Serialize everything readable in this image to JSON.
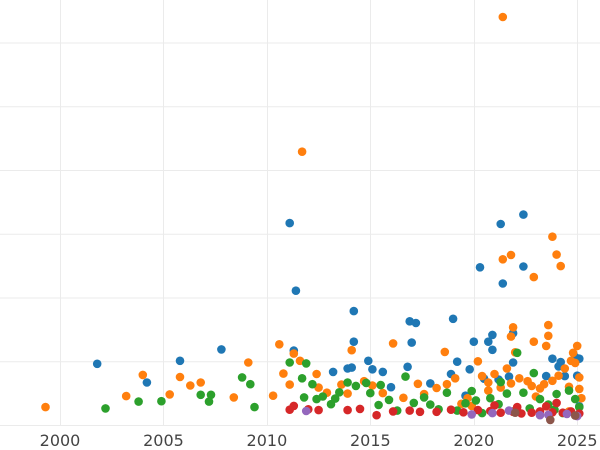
{
  "chart_data": {
    "type": "scatter",
    "title": "",
    "xlabel": "",
    "ylabel": "",
    "xlim": [
      1997.1,
      2026.1
    ],
    "ylim": [
      0,
      100
    ],
    "x_ticks": [
      2000,
      2005,
      2010,
      2015,
      2020,
      2025
    ],
    "x_tick_labels": [
      "2000",
      "2005",
      "2010",
      "2015",
      "2020",
      "2025"
    ],
    "y_gridlines": [
      0,
      15,
      30,
      45,
      60,
      75,
      90
    ],
    "grid": true,
    "legend": "none",
    "colors": {
      "blue": "#1f77b4",
      "orange": "#ff7f0e",
      "green": "#2ca02c",
      "red": "#d62728",
      "purple": "#9467bd",
      "brown": "#8c564b"
    },
    "series": [
      {
        "color_key": "blue",
        "points": [
          [
            2001.8,
            14.4
          ],
          [
            2004.2,
            10.0
          ],
          [
            2005.8,
            15.1
          ],
          [
            2007.8,
            17.8
          ],
          [
            2011.1,
            47.5
          ],
          [
            2011.4,
            31.6
          ],
          [
            2011.3,
            17.5
          ],
          [
            2013.2,
            12.5
          ],
          [
            2013.9,
            13.3
          ],
          [
            2014.2,
            26.8
          ],
          [
            2014.2,
            19.6
          ],
          [
            2014.1,
            13.5
          ],
          [
            2014.9,
            15.1
          ],
          [
            2015.1,
            13.1
          ],
          [
            2015.6,
            12.5
          ],
          [
            2016.0,
            8.9
          ],
          [
            2016.8,
            13.7
          ],
          [
            2016.9,
            24.4
          ],
          [
            2017.0,
            19.4
          ],
          [
            2017.2,
            24.0
          ],
          [
            2017.9,
            9.8
          ],
          [
            2018.9,
            12.0
          ],
          [
            2019.0,
            25.0
          ],
          [
            2019.2,
            14.9
          ],
          [
            2019.6,
            6.9
          ],
          [
            2019.8,
            13.1
          ],
          [
            2020.0,
            19.6
          ],
          [
            2020.3,
            37.1
          ],
          [
            2020.5,
            10.9
          ],
          [
            2020.7,
            19.6
          ],
          [
            2020.9,
            21.2
          ],
          [
            2020.9,
            17.7
          ],
          [
            2021.2,
            10.7
          ],
          [
            2021.3,
            47.3
          ],
          [
            2021.4,
            33.3
          ],
          [
            2021.9,
            21.6
          ],
          [
            2021.9,
            14.7
          ],
          [
            2021.7,
            11.4
          ],
          [
            2022.4,
            49.5
          ],
          [
            2022.4,
            37.3
          ],
          [
            2024.1,
            13.8
          ],
          [
            2024.2,
            14.8
          ],
          [
            2024.4,
            11.5
          ],
          [
            2024.9,
            16.0
          ],
          [
            2025.1,
            15.6
          ],
          [
            2025.0,
            11.6
          ],
          [
            2023.8,
            15.6
          ],
          [
            2023.5,
            11.5
          ],
          [
            2025.1,
            4.4
          ]
        ]
      },
      {
        "color_key": "orange",
        "points": [
          [
            1999.3,
            4.2
          ],
          [
            2003.2,
            6.8
          ],
          [
            2004.0,
            11.8
          ],
          [
            2005.3,
            7.2
          ],
          [
            2005.8,
            11.3
          ],
          [
            2006.3,
            9.3
          ],
          [
            2006.8,
            10.0
          ],
          [
            2008.4,
            6.5
          ],
          [
            2009.1,
            14.7
          ],
          [
            2010.3,
            6.9
          ],
          [
            2010.6,
            19.0
          ],
          [
            2010.8,
            12.1
          ],
          [
            2011.1,
            9.5
          ],
          [
            2011.3,
            16.8
          ],
          [
            2011.6,
            15.1
          ],
          [
            2011.7,
            64.3
          ],
          [
            2012.4,
            12.0
          ],
          [
            2012.5,
            8.8
          ],
          [
            2012.9,
            7.6
          ],
          [
            2013.6,
            9.5
          ],
          [
            2013.9,
            7.4
          ],
          [
            2014.1,
            17.6
          ],
          [
            2014.7,
            10.3
          ],
          [
            2015.1,
            9.3
          ],
          [
            2015.6,
            7.5
          ],
          [
            2016.1,
            19.2
          ],
          [
            2016.6,
            6.4
          ],
          [
            2017.3,
            9.7
          ],
          [
            2017.6,
            7.3
          ],
          [
            2018.2,
            8.7
          ],
          [
            2018.7,
            9.6
          ],
          [
            2018.6,
            17.2
          ],
          [
            2019.1,
            11.0
          ],
          [
            2019.7,
            6.3
          ],
          [
            2019.9,
            4.5
          ],
          [
            2020.2,
            15.0
          ],
          [
            2020.4,
            11.5
          ],
          [
            2020.7,
            10.0
          ],
          [
            2021.0,
            12.0
          ],
          [
            2021.3,
            8.8
          ],
          [
            2021.4,
            96.0
          ],
          [
            2021.4,
            39.0
          ],
          [
            2021.6,
            13.3
          ],
          [
            2021.8,
            9.8
          ],
          [
            2021.9,
            23.0
          ],
          [
            2021.8,
            20.8
          ],
          [
            2021.8,
            40.0
          ],
          [
            2022.0,
            17.1
          ],
          [
            2022.2,
            11.0
          ],
          [
            2022.6,
            10.3
          ],
          [
            2022.8,
            9.2
          ],
          [
            2022.9,
            19.6
          ],
          [
            2022.9,
            34.8
          ],
          [
            2023.2,
            8.6
          ],
          [
            2023.5,
            18.6
          ],
          [
            2023.6,
            21.0
          ],
          [
            2023.6,
            23.5
          ],
          [
            2023.8,
            10.4
          ],
          [
            2023.8,
            44.3
          ],
          [
            2024.0,
            40.1
          ],
          [
            2024.2,
            37.4
          ],
          [
            2024.1,
            11.6
          ],
          [
            2024.4,
            13.3
          ],
          [
            2024.6,
            9.0
          ],
          [
            2024.7,
            15.1
          ],
          [
            2024.8,
            17.0
          ],
          [
            2024.9,
            14.6
          ],
          [
            2025.1,
            8.5
          ],
          [
            2025.1,
            11.2
          ],
          [
            2025.2,
            6.3
          ],
          [
            2025.0,
            18.6
          ],
          [
            2023.4,
            9.6
          ],
          [
            2023.0,
            6.7
          ],
          [
            2020.7,
            8.1
          ],
          [
            2019.4,
            5.0
          ],
          [
            2024.6,
            3.2
          ]
        ]
      },
      {
        "color_key": "green",
        "points": [
          [
            2002.2,
            3.9
          ],
          [
            2003.8,
            5.5
          ],
          [
            2004.9,
            5.6
          ],
          [
            2006.8,
            7.1
          ],
          [
            2007.2,
            5.5
          ],
          [
            2007.3,
            7.1
          ],
          [
            2008.8,
            11.2
          ],
          [
            2009.2,
            9.6
          ],
          [
            2009.4,
            4.2
          ],
          [
            2011.1,
            14.7
          ],
          [
            2011.7,
            11.0
          ],
          [
            2011.9,
            14.5
          ],
          [
            2011.8,
            6.5
          ],
          [
            2012.2,
            9.6
          ],
          [
            2012.4,
            6.1
          ],
          [
            2012.7,
            6.7
          ],
          [
            2013.1,
            4.9
          ],
          [
            2013.3,
            6.2
          ],
          [
            2013.5,
            7.7
          ],
          [
            2013.9,
            10.0
          ],
          [
            2014.3,
            9.2
          ],
          [
            2014.8,
            9.9
          ],
          [
            2015.0,
            7.5
          ],
          [
            2015.4,
            4.7
          ],
          [
            2015.5,
            9.4
          ],
          [
            2015.9,
            5.9
          ],
          [
            2016.3,
            3.4
          ],
          [
            2016.7,
            11.4
          ],
          [
            2017.1,
            5.2
          ],
          [
            2017.6,
            6.5
          ],
          [
            2017.9,
            4.8
          ],
          [
            2018.3,
            3.7
          ],
          [
            2018.7,
            7.6
          ],
          [
            2019.2,
            3.4
          ],
          [
            2019.6,
            5.1
          ],
          [
            2020.1,
            5.8
          ],
          [
            2020.4,
            2.8
          ],
          [
            2020.8,
            6.3
          ],
          [
            2021.3,
            10.1
          ],
          [
            2021.6,
            7.4
          ],
          [
            2021.9,
            3.2
          ],
          [
            2022.1,
            17.0
          ],
          [
            2022.4,
            7.6
          ],
          [
            2022.7,
            3.9
          ],
          [
            2022.9,
            12.2
          ],
          [
            2023.2,
            6.1
          ],
          [
            2023.6,
            4.8
          ],
          [
            2024.0,
            7.3
          ],
          [
            2024.3,
            2.8
          ],
          [
            2024.6,
            8.1
          ],
          [
            2024.9,
            6.1
          ],
          [
            2025.1,
            4.2
          ],
          [
            2019.9,
            8.0
          ],
          [
            2021.2,
            4.9
          ],
          [
            2023.9,
            3.6
          ]
        ]
      },
      {
        "color_key": "red",
        "points": [
          [
            2011.1,
            3.6
          ],
          [
            2011.3,
            4.5
          ],
          [
            2012.0,
            3.7
          ],
          [
            2012.5,
            3.5
          ],
          [
            2013.9,
            3.5
          ],
          [
            2014.5,
            3.8
          ],
          [
            2015.3,
            2.3
          ],
          [
            2016.1,
            3.2
          ],
          [
            2016.9,
            3.4
          ],
          [
            2017.4,
            3.1
          ],
          [
            2018.2,
            3.1
          ],
          [
            2018.9,
            3.6
          ],
          [
            2019.5,
            3.0
          ],
          [
            2020.2,
            3.5
          ],
          [
            2020.8,
            3.3
          ],
          [
            2021.3,
            2.9
          ],
          [
            2021.9,
            3.1
          ],
          [
            2022.3,
            2.7
          ],
          [
            2022.8,
            2.9
          ],
          [
            2023.2,
            3.2
          ],
          [
            2023.8,
            3.0
          ],
          [
            2024.3,
            2.9
          ],
          [
            2024.7,
            3.2
          ],
          [
            2025.1,
            2.7
          ],
          [
            2021.0,
            4.6
          ],
          [
            2022.1,
            4.2
          ],
          [
            2023.5,
            4.4
          ],
          [
            2024.0,
            5.2
          ]
        ]
      },
      {
        "color_key": "purple",
        "points": [
          [
            2011.9,
            3.3
          ],
          [
            2019.9,
            2.5
          ],
          [
            2021.7,
            3.4
          ],
          [
            2023.2,
            2.3
          ],
          [
            2023.6,
            2.4
          ],
          [
            2025.0,
            2.1
          ],
          [
            2024.5,
            2.6
          ],
          [
            2020.9,
            2.8
          ]
        ]
      },
      {
        "color_key": "brown",
        "points": [
          [
            2023.7,
            1.2
          ],
          [
            2024.9,
            2.2
          ],
          [
            2022.0,
            2.9
          ]
        ]
      }
    ]
  }
}
